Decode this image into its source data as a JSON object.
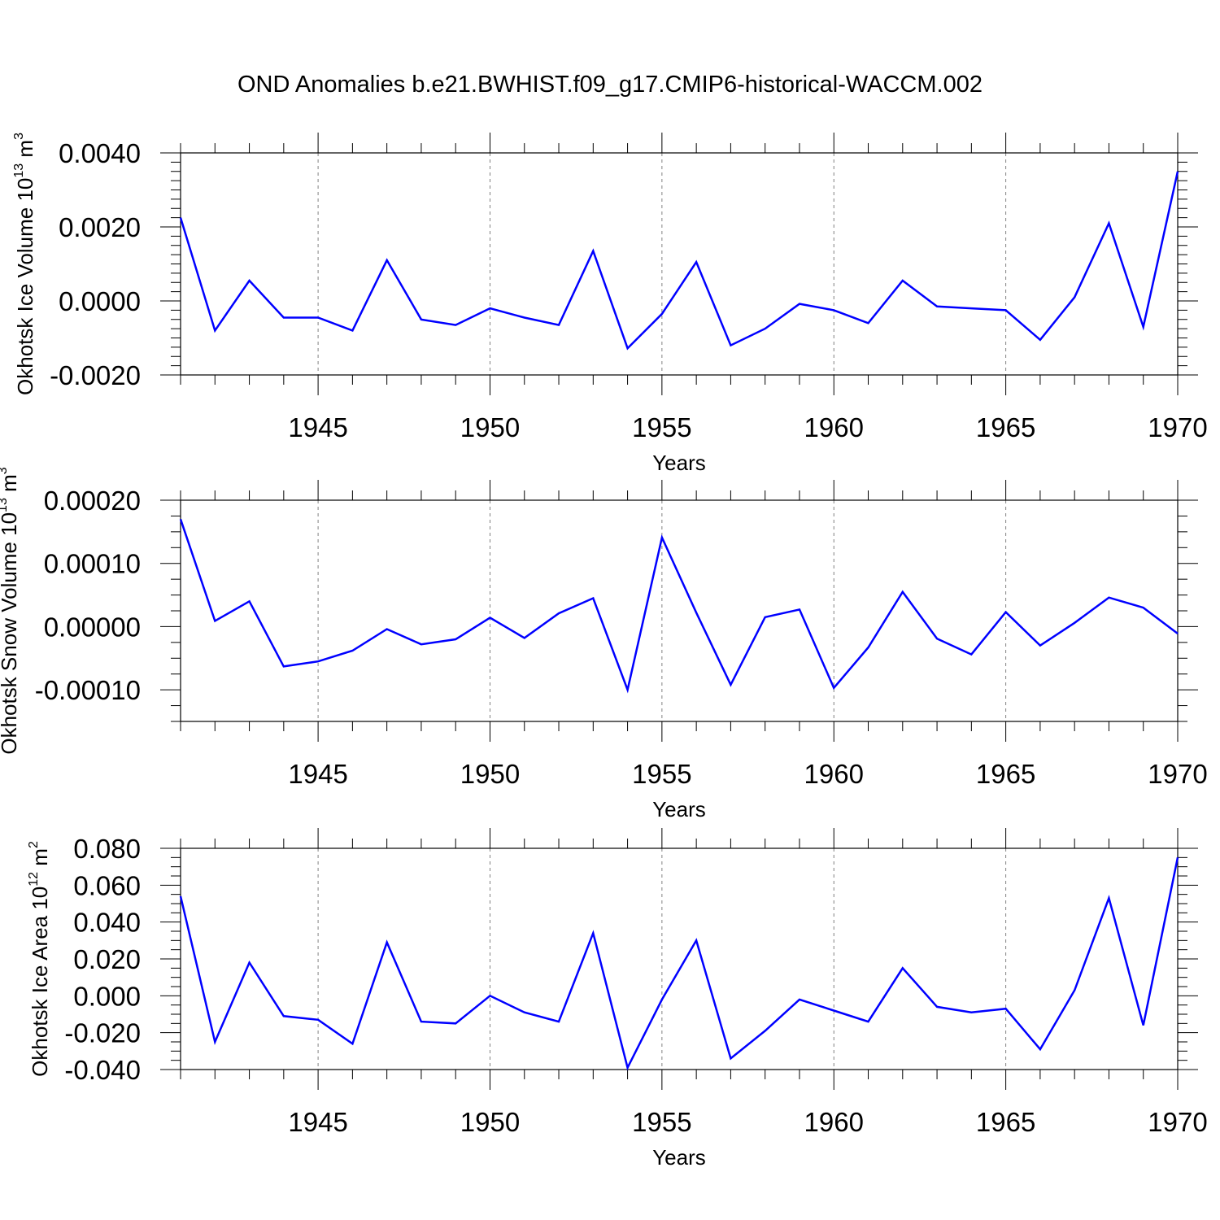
{
  "title": "OND Anomalies b.e21.BWHIST.f09_g17.CMIP6-historical-WACCM.002",
  "line_color": "#0000ff",
  "chart_data": [
    {
      "type": "line",
      "ylabel": "Okhotsk Ice Volume",
      "ylabel_unit": "10",
      "ylabel_exp": "13",
      "ylabel_unit2": " m",
      "ylabel_exp2": "3",
      "xlabel": "Years",
      "xlim": [
        1941,
        1970
      ],
      "ylim": [
        -0.002,
        0.004
      ],
      "x_ticks": [
        1945,
        1950,
        1955,
        1960,
        1965,
        1970
      ],
      "x_tick_labels": [
        "1945",
        "1950",
        "1955",
        "1960",
        "1965",
        "1970"
      ],
      "y_ticks": [
        -0.002,
        0.0,
        0.002,
        0.004
      ],
      "y_tick_labels": [
        "-0.0020",
        "0.0000",
        "0.0020",
        "0.0040"
      ],
      "grid": "dashed vertical lines at x ticks",
      "series": [
        {
          "x": [
            1941,
            1942,
            1943,
            1944,
            1945,
            1946,
            1947,
            1948,
            1949,
            1950,
            1951,
            1952,
            1953,
            1954,
            1955,
            1956,
            1957,
            1958,
            1959,
            1960,
            1961,
            1962,
            1963,
            1964,
            1965,
            1966,
            1967,
            1968,
            1969,
            1970
          ],
          "values": [
            0.00225,
            -0.0008,
            0.00055,
            -0.00045,
            -0.00045,
            -0.0008,
            0.0011,
            -0.0005,
            -0.00065,
            -0.0002,
            -0.00045,
            -0.00065,
            0.00135,
            -0.00128,
            -0.00035,
            0.00105,
            -0.0012,
            -0.00075,
            -8e-05,
            -0.00025,
            -0.0006,
            0.00055,
            -0.00015,
            -0.0002,
            -0.00025,
            -0.00105,
            0.0001,
            0.0021,
            -0.0007,
            0.0035
          ]
        }
      ]
    },
    {
      "type": "line",
      "ylabel": "Okhotsk Snow Volume",
      "ylabel_unit": "10",
      "ylabel_exp": "13",
      "ylabel_unit2": " m",
      "ylabel_exp2": "3",
      "xlabel": "Years",
      "xlim": [
        1941,
        1970
      ],
      "ylim": [
        -0.00015,
        0.0002
      ],
      "x_ticks": [
        1945,
        1950,
        1955,
        1960,
        1965,
        1970
      ],
      "x_tick_labels": [
        "1945",
        "1950",
        "1955",
        "1960",
        "1965",
        "1970"
      ],
      "y_ticks": [
        -0.0001,
        0.0,
        0.0001,
        0.0002
      ],
      "y_tick_labels": [
        "-0.00010",
        "0.00000",
        "0.00010",
        "0.00020"
      ],
      "grid": "dashed vertical lines at x ticks",
      "series": [
        {
          "x": [
            1941,
            1942,
            1943,
            1944,
            1945,
            1946,
            1947,
            1948,
            1949,
            1950,
            1951,
            1952,
            1953,
            1954,
            1955,
            1956,
            1957,
            1958,
            1959,
            1960,
            1961,
            1962,
            1963,
            1964,
            1965,
            1966,
            1967,
            1968,
            1969,
            1970
          ],
          "values": [
            0.00017,
            9e-06,
            4e-05,
            -6.3e-05,
            -5.5e-05,
            -3.8e-05,
            -4e-06,
            -2.8e-05,
            -2e-05,
            1.4e-05,
            -1.8e-05,
            2.1e-05,
            4.5e-05,
            -0.0001,
            0.000141,
            2.2e-05,
            -9.2e-05,
            1.5e-05,
            2.7e-05,
            -9.7e-05,
            -3.3e-05,
            5.5e-05,
            -1.9e-05,
            -4.4e-05,
            2.3e-05,
            -3e-05,
            6e-06,
            4.6e-05,
            3e-05,
            -1.1e-05
          ]
        }
      ]
    },
    {
      "type": "line",
      "ylabel": "Okhotsk Ice Area",
      "ylabel_unit": "10",
      "ylabel_exp": "12",
      "ylabel_unit2": " m",
      "ylabel_exp2": "2",
      "xlabel": "Years",
      "xlim": [
        1941,
        1970
      ],
      "ylim": [
        -0.04,
        0.08
      ],
      "x_ticks": [
        1945,
        1950,
        1955,
        1960,
        1965,
        1970
      ],
      "x_tick_labels": [
        "1945",
        "1950",
        "1955",
        "1960",
        "1965",
        "1970"
      ],
      "y_ticks": [
        -0.04,
        -0.02,
        0.0,
        0.02,
        0.04,
        0.06,
        0.08
      ],
      "y_tick_labels": [
        "-0.040",
        "-0.020",
        "0.000",
        "0.020",
        "0.040",
        "0.060",
        "0.080"
      ],
      "grid": "dashed vertical lines at x ticks",
      "series": [
        {
          "x": [
            1941,
            1942,
            1943,
            1944,
            1945,
            1946,
            1947,
            1948,
            1949,
            1950,
            1951,
            1952,
            1953,
            1954,
            1955,
            1956,
            1957,
            1958,
            1959,
            1960,
            1961,
            1962,
            1963,
            1964,
            1965,
            1966,
            1967,
            1968,
            1969,
            1970
          ],
          "values": [
            0.054,
            -0.025,
            0.018,
            -0.011,
            -0.013,
            -0.026,
            0.029,
            -0.014,
            -0.015,
            0.0,
            -0.009,
            -0.014,
            0.034,
            -0.039,
            -0.002,
            0.03,
            -0.034,
            -0.019,
            -0.002,
            -0.008,
            -0.014,
            0.015,
            -0.006,
            -0.009,
            -0.007,
            -0.029,
            0.003,
            0.053,
            -0.016,
            0.075
          ]
        }
      ]
    }
  ]
}
